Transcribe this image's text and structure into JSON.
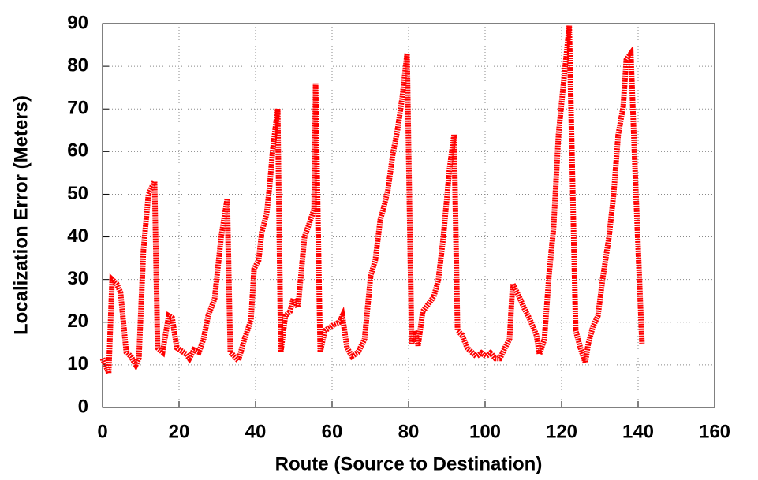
{
  "chart_data": {
    "type": "line",
    "x_label": "Route (Source to Destination)",
    "y_label": "Localization Error (Meters)",
    "x": [
      0,
      1.2,
      1.6,
      2.5,
      3.7,
      4.7,
      6.2,
      7.4,
      8.7,
      9.5,
      10.7,
      12,
      13.6,
      14.4,
      15.7,
      17.3,
      18.2,
      19.4,
      21.9,
      22.7,
      23.9,
      25.2,
      26.4,
      27.6,
      29.3,
      31,
      32.6,
      33.4,
      35.5,
      37.1,
      38.8,
      39.6,
      40.8,
      41.6,
      42.9,
      43.7,
      44.5,
      45.8,
      46.6,
      47.8,
      49,
      49.9,
      51.1,
      52.8,
      54,
      55.3,
      55.7,
      56.9,
      58.1,
      59.8,
      60.6,
      61.9,
      62.7,
      63.9,
      65.2,
      66.8,
      68.5,
      70.1,
      71.3,
      72.6,
      73.4,
      74.6,
      75.9,
      77.1,
      78.4,
      79.6,
      80.8,
      81.6,
      82.5,
      83.7,
      85.4,
      86.6,
      87.8,
      89.1,
      90.7,
      91.9,
      92.8,
      94,
      95.3,
      96.5,
      97.7,
      99,
      100.2,
      101.4,
      102.7,
      103.9,
      105.2,
      106.4,
      107.2,
      108.9,
      110.1,
      111.8,
      113.4,
      114.2,
      115.5,
      116.7,
      117.9,
      119.2,
      120.4,
      122,
      123.7,
      124.9,
      126.2,
      127,
      128.2,
      129.5,
      130.7,
      132.4,
      133.6,
      134.8,
      136.1,
      136.9,
      138.1,
      139.4,
      141
    ],
    "values": [
      11.5,
      9,
      8,
      30,
      29,
      27,
      13,
      12,
      10,
      11.5,
      37,
      50,
      53,
      14,
      13,
      21.5,
      21,
      14,
      12.5,
      11.5,
      13.5,
      13,
      16,
      21.5,
      25.5,
      40,
      49,
      13,
      11,
      16,
      20.5,
      32.5,
      34.5,
      41,
      45.5,
      52,
      60.5,
      70,
      13,
      21.5,
      22.5,
      25.5,
      23.5,
      40,
      43,
      46.5,
      76,
      13,
      18,
      19,
      19.5,
      20,
      21.5,
      14,
      12,
      13,
      16,
      31,
      34.5,
      44,
      46.5,
      51,
      59.5,
      65,
      73,
      83,
      15,
      18,
      14.5,
      22.5,
      24.5,
      26,
      30,
      40,
      56,
      64,
      18,
      17,
      14,
      13,
      12,
      12.8,
      12,
      12.8,
      11.5,
      11.5,
      14,
      16,
      29,
      26,
      23.5,
      20.5,
      17,
      12.5,
      16,
      31,
      42,
      64,
      75,
      89.5,
      18,
      14,
      10.5,
      15,
      19,
      21.5,
      30,
      40,
      50,
      64,
      70.5,
      81.5,
      83,
      51,
      15
    ],
    "color": "#ff0000",
    "xlim": [
      0,
      160
    ],
    "ylim": [
      0,
      90
    ],
    "xticks": [
      0,
      20,
      40,
      60,
      80,
      100,
      120,
      140,
      160
    ],
    "yticks": [
      0,
      10,
      20,
      30,
      40,
      50,
      60,
      70,
      80,
      90
    ],
    "grid": true
  }
}
